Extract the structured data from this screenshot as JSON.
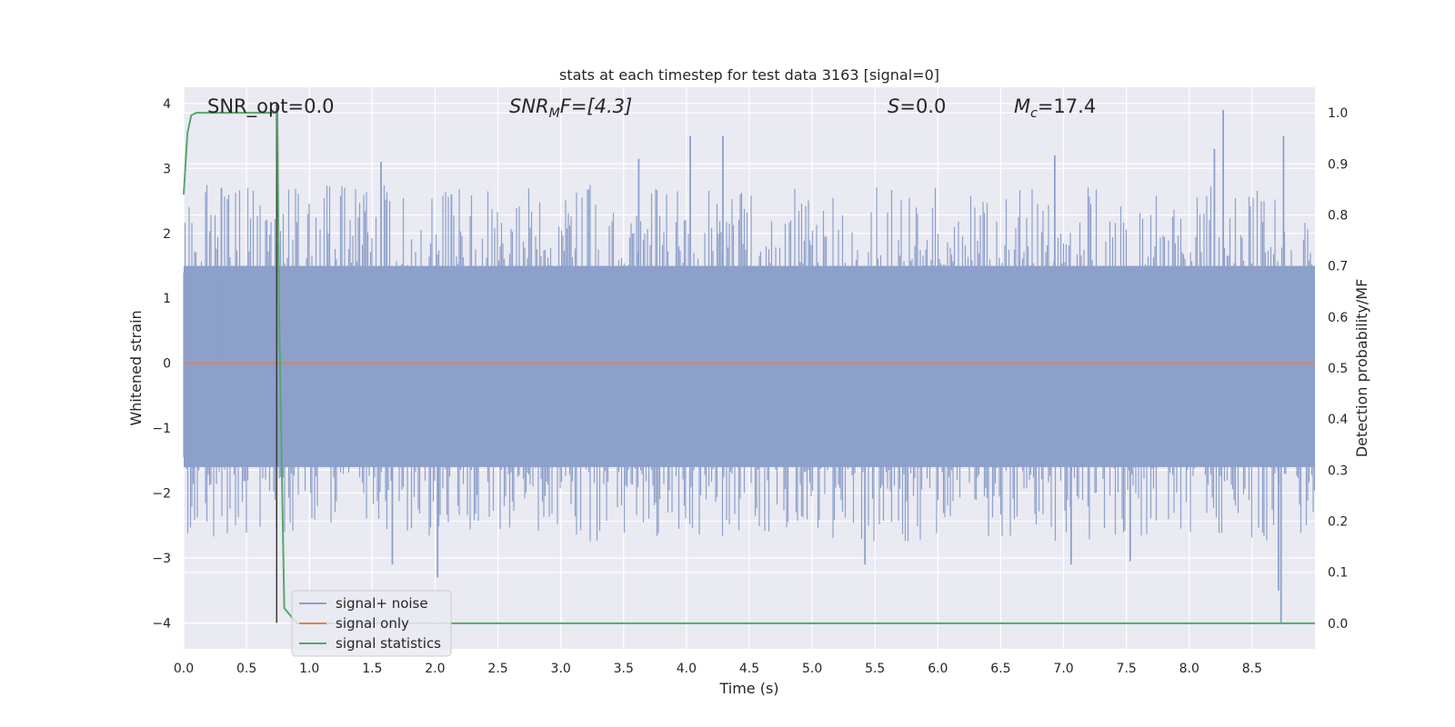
{
  "chart_data": {
    "type": "line",
    "title": "stats at each timestep for test data 3163 [signal=0]",
    "xlabel": "Time (s)",
    "ylabel": "Whitened strain",
    "y2label": "Detection probability/MF",
    "xlim": [
      0.0,
      9.0
    ],
    "ylim": [
      -4.4,
      4.25
    ],
    "y2lim": [
      -0.05,
      1.05
    ],
    "xticks": [
      "0.0",
      "0.5",
      "1.0",
      "1.5",
      "2.0",
      "2.5",
      "3.0",
      "3.5",
      "4.0",
      "4.5",
      "5.0",
      "5.5",
      "6.0",
      "6.5",
      "7.0",
      "7.5",
      "8.0",
      "8.5"
    ],
    "yticks": [
      "4",
      "3",
      "2",
      "1",
      "0",
      "−1",
      "−2",
      "−3",
      "−4"
    ],
    "y2ticks": [
      "1.0",
      "0.9",
      "0.8",
      "0.7",
      "0.6",
      "0.5",
      "0.4",
      "0.3",
      "0.2",
      "0.1",
      "0.0"
    ],
    "grid": true,
    "legend_position": "lower-left",
    "annotations": {
      "snr_opt": "SNR_opt=0.0",
      "snr_mf": "SNR",
      "snr_mf_sub": "M",
      "snr_mf_rest": "F=[4.3]",
      "s_italic": "S",
      "s_value": "=0.0",
      "mc_main": "M",
      "mc_sub": "c",
      "mc_value": "=17.4"
    },
    "noise": {
      "band_low": -1.6,
      "band_high": 1.5,
      "peaks": [
        {
          "x": 0.3,
          "y": 2.7
        },
        {
          "x": 1.57,
          "y": 3.1
        },
        {
          "x": 2.13,
          "y": 2.6
        },
        {
          "x": 3.62,
          "y": 3.15
        },
        {
          "x": 4.03,
          "y": 3.5
        },
        {
          "x": 4.29,
          "y": 3.5
        },
        {
          "x": 6.93,
          "y": 3.2
        },
        {
          "x": 8.2,
          "y": 3.3
        },
        {
          "x": 8.27,
          "y": 3.9
        },
        {
          "x": 8.75,
          "y": 3.5
        },
        {
          "x": 1.66,
          "y": -3.1
        },
        {
          "x": 2.02,
          "y": -3.3
        },
        {
          "x": 5.42,
          "y": -3.1
        },
        {
          "x": 7.06,
          "y": -3.1
        },
        {
          "x": 7.53,
          "y": -3.05
        },
        {
          "x": 8.73,
          "y": -4.0
        },
        {
          "x": 8.71,
          "y": -3.5
        }
      ]
    },
    "series": [
      {
        "name": "signal+ noise",
        "color": "#8da0cb",
        "kind": "noise"
      },
      {
        "name": "signal only",
        "color": "#dd8452",
        "kind": "flat",
        "y": 0.0
      },
      {
        "name": "signal statistics",
        "color": "#55a868",
        "axis": "right",
        "x": [
          0.0,
          0.03,
          0.06,
          0.1,
          0.2,
          0.35,
          0.5,
          0.6,
          0.7,
          0.73,
          0.745,
          0.76,
          0.8,
          0.9,
          1.0,
          2.0,
          4.0,
          6.0,
          8.0,
          9.0
        ],
        "y": [
          0.84,
          0.96,
          0.995,
          1.0,
          1.0,
          1.0,
          1.0,
          1.0,
          1.0,
          1.0,
          1.0,
          0.6,
          0.03,
          0.0,
          0.0,
          0.0,
          0.0,
          0.0,
          0.0,
          0.0
        ]
      }
    ],
    "marker_line": {
      "x": 0.74,
      "y_from": -4.0,
      "y_to": 4.0,
      "color": "#3a3a3a"
    }
  }
}
